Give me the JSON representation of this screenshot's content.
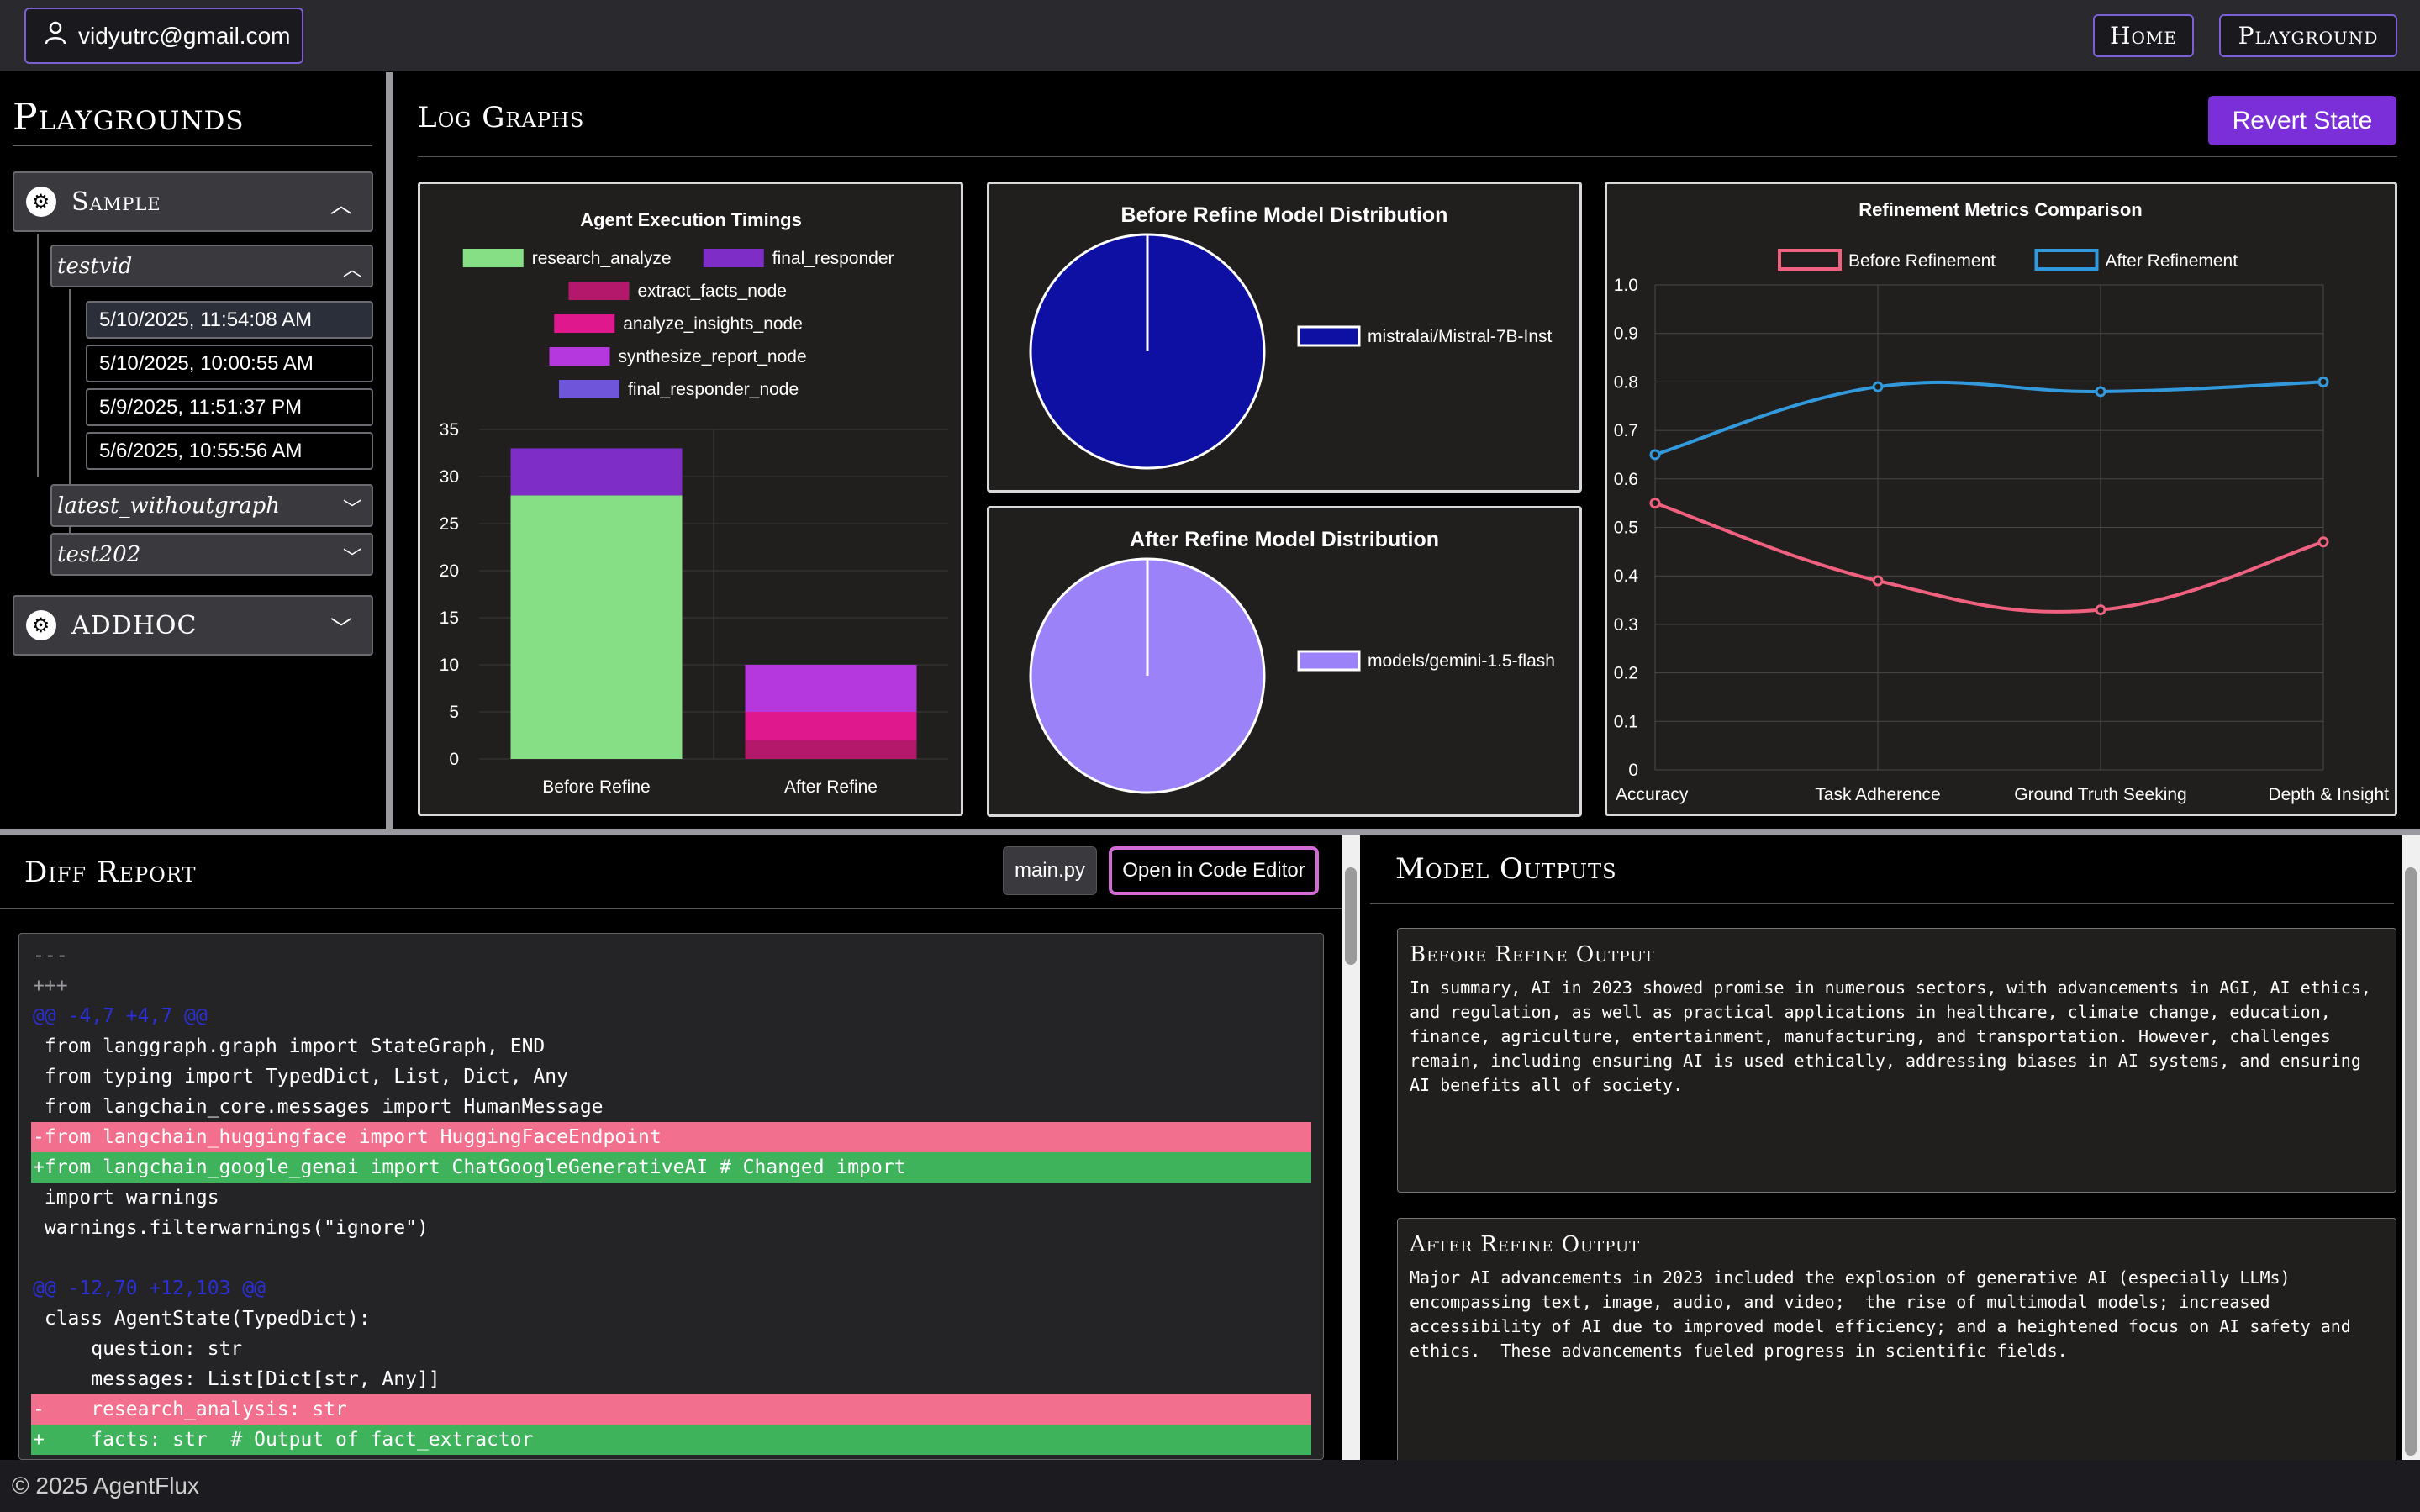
{
  "topbar": {
    "user_email": "vidyutrc@gmail.com",
    "nav": [
      "Home",
      "Playground"
    ]
  },
  "sidebar": {
    "title": "Playgrounds",
    "groups": [
      {
        "name": "Sample",
        "expanded": true,
        "playgrounds": [
          {
            "name": "testvid",
            "expanded": true,
            "runs": [
              "5/10/2025, 11:54:08 AM",
              "5/10/2025, 10:00:55 AM",
              "5/9/2025, 11:51:37 PM",
              "5/6/2025, 10:55:56 AM"
            ]
          },
          {
            "name": "latest_withoutgraph",
            "expanded": false
          },
          {
            "name": "test202",
            "expanded": false
          }
        ]
      },
      {
        "name": "ADDHOC",
        "expanded": false
      }
    ]
  },
  "graphs": {
    "title": "Log Graphs",
    "revert_label": "Revert State"
  },
  "chart_data": [
    {
      "type": "bar",
      "stacked": true,
      "title": "Agent Execution Timings",
      "categories": [
        "Before Refine",
        "After Refine"
      ],
      "series": [
        {
          "name": "research_analyze",
          "color": "#86df84",
          "values": [
            28,
            0
          ]
        },
        {
          "name": "final_responder",
          "color": "#7e2ec7",
          "values": [
            5,
            0
          ]
        },
        {
          "name": "extract_facts_node",
          "color": "#b3186b",
          "values": [
            0,
            2
          ]
        },
        {
          "name": "analyze_insights_node",
          "color": "#e0188e",
          "values": [
            0,
            3
          ]
        },
        {
          "name": "synthesize_report_node",
          "color": "#b538df",
          "values": [
            0,
            5
          ]
        },
        {
          "name": "final_responder_node",
          "color": "#6f55d9",
          "values": [
            0,
            0
          ]
        }
      ],
      "yticks": [
        0,
        5,
        10,
        15,
        20,
        25,
        30,
        35
      ],
      "ylim": [
        0,
        35
      ],
      "legend": "top",
      "grid": true
    },
    {
      "type": "pie",
      "title": "Before Refine Model Distribution",
      "slices": [
        {
          "label": "mistralai/Mistral-7B-Inst",
          "value": 100,
          "color": "#0e0fa3"
        }
      ],
      "legend": "right"
    },
    {
      "type": "pie",
      "title": "After Refine Model Distribution",
      "slices": [
        {
          "label": "models/gemini-1.5-flash",
          "value": 100,
          "color": "#9b82f8"
        }
      ],
      "legend": "right"
    },
    {
      "type": "line",
      "title": "Refinement Metrics Comparison",
      "categories": [
        "Accuracy",
        "Task Adherence",
        "Ground Truth Seeking",
        "Depth & Insight"
      ],
      "series": [
        {
          "name": "Before Refinement",
          "color": "#f0607f",
          "values": [
            0.55,
            0.39,
            0.33,
            0.47
          ]
        },
        {
          "name": "After Refinement",
          "color": "#3399dd",
          "values": [
            0.65,
            0.79,
            0.78,
            0.8
          ]
        }
      ],
      "yticks": [
        "0",
        "0.1",
        "0.2",
        "0.3",
        "0.4",
        "0.5",
        "0.6",
        "0.7",
        "0.8",
        "0.9",
        "1.0"
      ],
      "ylim": [
        0,
        1
      ],
      "legend": "top",
      "grid": true
    }
  ],
  "diff": {
    "title": "Diff Report",
    "file_label": "main.py",
    "open_label": "Open in Code Editor",
    "lines": [
      {
        "t": "meta",
        "text": "---"
      },
      {
        "t": "meta",
        "text": "+++"
      },
      {
        "t": "hunk",
        "text": "@@ -4,7 +4,7 @@"
      },
      {
        "t": "ctx",
        "text": " from langgraph.graph import StateGraph, END"
      },
      {
        "t": "ctx",
        "text": " from typing import TypedDict, List, Dict, Any"
      },
      {
        "t": "ctx",
        "text": " from langchain_core.messages import HumanMessage"
      },
      {
        "t": "del",
        "text": "-from langchain_huggingface import HuggingFaceEndpoint"
      },
      {
        "t": "add",
        "text": "+from langchain_google_genai import ChatGoogleGenerativeAI # Changed import"
      },
      {
        "t": "ctx",
        "text": " import warnings"
      },
      {
        "t": "ctx",
        "text": " warnings.filterwarnings(\"ignore\")"
      },
      {
        "t": "ctx",
        "text": ""
      },
      {
        "t": "hunk",
        "text": "@@ -12,70 +12,103 @@"
      },
      {
        "t": "ctx",
        "text": " class AgentState(TypedDict):"
      },
      {
        "t": "ctx",
        "text": "     question: str"
      },
      {
        "t": "ctx",
        "text": "     messages: List[Dict[str, Any]]"
      },
      {
        "t": "del",
        "text": "-    research_analysis: str"
      },
      {
        "t": "add",
        "text": "+    facts: str  # Output of fact_extractor"
      }
    ]
  },
  "outputs": {
    "title": "Model Outputs",
    "before_title": "Before Refine Output",
    "before_text": "In summary, AI in 2023 showed promise in numerous sectors, with advancements in AGI, AI ethics, and regulation, as well as practical applications in healthcare, climate change, education, finance, agriculture, entertainment, manufacturing, and transportation. However, challenges remain, including ensuring AI is used ethically, addressing biases in AI systems, and ensuring AI benefits all of society.",
    "after_title": "After Refine Output",
    "after_text": "Major AI advancements in 2023 included the explosion of generative AI (especially LLMs) encompassing text, image, audio, and video;  the rise of multimodal models; increased accessibility of AI due to improved model efficiency; and a heightened focus on AI safety and ethics.  These advancements fueled progress in scientific fields."
  },
  "footer": {
    "text": "© 2025 AgentFlux"
  }
}
